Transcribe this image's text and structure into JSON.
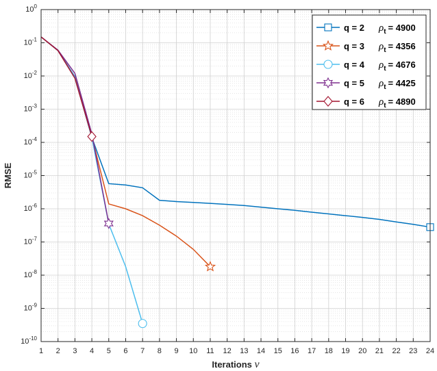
{
  "chart_data": {
    "type": "line",
    "xlabel": "Iterations",
    "xlabel_symbol": "ν",
    "ylabel": "RMSE",
    "xlim": [
      1,
      24
    ],
    "ylim_log10": [
      -10,
      0
    ],
    "y_scale": "log",
    "grid": true,
    "minor_grid": true,
    "legend_position": "top-right",
    "x_ticks": [
      "1",
      "2",
      "3",
      "4",
      "5",
      "6",
      "7",
      "8",
      "9",
      "10",
      "11",
      "12",
      "13",
      "14",
      "15",
      "16",
      "17",
      "18",
      "19",
      "20",
      "21",
      "22",
      "23",
      "24"
    ],
    "y_ticks": [
      {
        "base": "10",
        "exp": "0"
      },
      {
        "base": "10",
        "exp": "-1"
      },
      {
        "base": "10",
        "exp": "-2"
      },
      {
        "base": "10",
        "exp": "-3"
      },
      {
        "base": "10",
        "exp": "-4"
      },
      {
        "base": "10",
        "exp": "-5"
      },
      {
        "base": "10",
        "exp": "-6"
      },
      {
        "base": "10",
        "exp": "-7"
      },
      {
        "base": "10",
        "exp": "-8"
      },
      {
        "base": "10",
        "exp": "-9"
      },
      {
        "base": "10",
        "exp": "-10"
      }
    ],
    "series": [
      {
        "q_label": "q = 2",
        "rho_sub": "t",
        "rho_value": "= 4900",
        "color": "#0072BD",
        "marker": "square",
        "x": [
          1,
          2,
          3,
          4,
          5,
          6,
          7,
          8,
          9,
          10,
          11,
          12,
          13,
          14,
          15,
          16,
          17,
          18,
          19,
          20,
          21,
          22,
          23,
          24
        ],
        "y": [
          0.15,
          0.058,
          0.0095,
          0.00014,
          5.7e-06,
          5.2e-06,
          4.3e-06,
          1.8e-06,
          1.65e-06,
          1.55e-06,
          1.45e-06,
          1.35e-06,
          1.25e-06,
          1.12e-06,
          1e-06,
          9e-07,
          7.9e-07,
          7e-07,
          6.2e-07,
          5.5e-07,
          4.8e-07,
          4e-07,
          3.4e-07,
          2.8e-07
        ]
      },
      {
        "q_label": "q = 3",
        "rho_sub": "t",
        "rho_value": "= 4356",
        "color": "#D95319",
        "marker": "pentagram",
        "x": [
          1,
          2,
          3,
          4,
          5,
          6,
          7,
          8,
          9,
          10,
          11
        ],
        "y": [
          0.15,
          0.058,
          0.009,
          0.00015,
          1.4e-06,
          1e-06,
          6.2e-07,
          3.2e-07,
          1.5e-07,
          6e-08,
          1.8e-08
        ]
      },
      {
        "q_label": "q = 4",
        "rho_sub": "t",
        "rho_value": "= 4676",
        "color": "#4DBEEE",
        "marker": "circle",
        "x": [
          1,
          2,
          3,
          4,
          5,
          6,
          7
        ],
        "y": [
          0.15,
          0.058,
          0.009,
          0.00014,
          3.5e-07,
          1.8e-08,
          3.5e-10
        ]
      },
      {
        "q_label": "q = 5",
        "rho_sub": "t",
        "rho_value": "= 4425",
        "color": "#7E2F8E",
        "marker": "hexagram",
        "x": [
          1,
          2,
          3,
          4,
          5
        ],
        "y": [
          0.15,
          0.06,
          0.012,
          0.00018,
          3.6e-07
        ]
      },
      {
        "q_label": "q = 6",
        "rho_sub": "t",
        "rho_value": "= 4890",
        "color": "#A2142F",
        "marker": "diamond",
        "x": [
          1,
          2,
          3,
          4
        ],
        "y": [
          0.15,
          0.058,
          0.0085,
          0.00015
        ]
      }
    ]
  }
}
